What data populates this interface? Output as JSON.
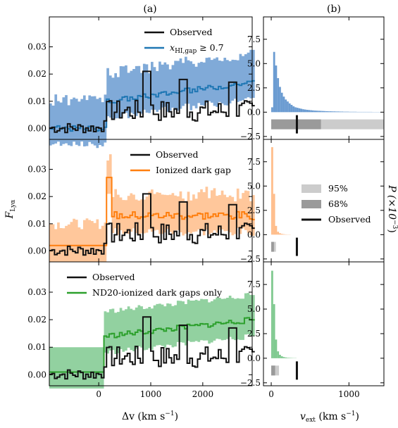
{
  "figure": {
    "label_a": "(a)",
    "label_b": "(b)",
    "ylabel_a": "F",
    "ylabel_a_sub": "Lyα",
    "xlabel_a": "Δv (km s",
    "xlabel_a_sup": "−1",
    "xlabel_a_close": ")",
    "xlabel_b": "v",
    "xlabel_b_sub": "ext",
    "xlabel_b_units": " (km s",
    "xlabel_b_sup": "−1",
    "xlabel_b_close": ")",
    "ylabel_b": "P (×10",
    "ylabel_b_sup": "−3",
    "ylabel_b_close": ")"
  },
  "colors": {
    "observed": "#111111",
    "blue": "#1f77b4",
    "blue_fill": "#6a9bd1",
    "orange": "#ff7f0e",
    "orange_fill": "#ffbd8a",
    "green": "#2ca02c",
    "green_fill": "#7fc98f",
    "band95": "#cccccc",
    "band68": "#9a9a9a"
  },
  "chart_data": [
    {
      "panel": "a-top",
      "type": "line",
      "xlim": [
        -950,
        2950
      ],
      "ylim": [
        -0.004,
        0.041
      ],
      "xticks": [
        0,
        1000,
        2000
      ],
      "yticks": [
        0.0,
        0.01,
        0.02,
        0.03
      ],
      "ytick_labels": [
        "0.00",
        "0.01",
        "0.02",
        "0.03"
      ],
      "legend": [
        "Observed",
        "x"
      ],
      "legend_model_sub": "HI,gap",
      "legend_model_tail": " ≥ 0.7",
      "legend_position": "top-right",
      "model": {
        "name": "x_HI,gap ≥ 0.7",
        "start": 150,
        "end_value": 0.017,
        "plateau": 0.01,
        "lower_offset": 0.0055,
        "upper_offset": 0.0085
      }
    },
    {
      "panel": "a-middle",
      "type": "line",
      "xlim": [
        -950,
        2950
      ],
      "ylim": [
        -0.004,
        0.041
      ],
      "xticks": [
        0,
        1000,
        2000
      ],
      "yticks": [
        0.0,
        0.01,
        0.02,
        0.03
      ],
      "ytick_labels": [
        "0.00",
        "0.01",
        "0.02",
        "0.03"
      ],
      "legend": [
        "Observed",
        "Ionized dark gap"
      ],
      "legend_position": "top-right",
      "model": {
        "name": "Ionized dark gap",
        "pre_level": 0.002,
        "peak": 0.027,
        "plateau": 0.013,
        "lower_offset": 0.006,
        "upper_offset": 0.006
      }
    },
    {
      "panel": "a-bottom",
      "type": "line",
      "xlim": [
        -950,
        2950
      ],
      "ylim": [
        -0.004,
        0.041
      ],
      "xticks": [
        0,
        1000,
        2000
      ],
      "xtick_labels": [
        "0",
        "1000",
        "2000"
      ],
      "yticks": [
        0.0,
        0.01,
        0.02,
        0.03
      ],
      "ytick_labels": [
        "0.00",
        "0.01",
        "0.02",
        "0.03"
      ],
      "legend": [
        "Observed",
        "ND20-ionized dark gaps only"
      ],
      "legend_position": "top-right",
      "model": {
        "name": "ND20-ionized dark gaps only",
        "pre_level": 0.001,
        "step_value": 0.014,
        "end_value": 0.02,
        "lower_offset": 0.006,
        "upper_offset": 0.009
      }
    },
    {
      "panel": "b",
      "type": "bar",
      "xlim": [
        -100,
        1450
      ],
      "xticks": [
        0,
        1000
      ],
      "xtick_labels": [
        "0",
        "1000"
      ],
      "ylim": [
        -2.8,
        9.8
      ],
      "yticks": [
        -2.5,
        0.0,
        2.5,
        5.0,
        7.5
      ],
      "ytick_labels": [
        "−2.5",
        "0.0",
        "2.5",
        "5.0",
        "7.5"
      ],
      "observed_vext": 330,
      "bands": [
        {
          "panel": "top",
          "p95": [
            0,
            1450
          ],
          "p68": [
            0,
            640
          ]
        },
        {
          "panel": "middle",
          "p95": [
            0,
            60
          ],
          "p68": [
            0,
            35
          ]
        },
        {
          "panel": "bottom",
          "p95": [
            0,
            100
          ],
          "p68": [
            0,
            50
          ]
        }
      ],
      "legend": [
        "95%",
        "68%",
        "Observed"
      ],
      "histograms": {
        "top": [
          0.5,
          6.2,
          4.8,
          3.5,
          2.6,
          2.0,
          1.6,
          1.3,
          1.1,
          0.9,
          0.75,
          0.6,
          0.5,
          0.45,
          0.4,
          0.35,
          0.3,
          0.27,
          0.24,
          0.22,
          0.2,
          0.18,
          0.16,
          0.15,
          0.14,
          0.13,
          0.12,
          0.11,
          0.1,
          0.09,
          0.09,
          0.08,
          0.08,
          0.07,
          0.07,
          0.06,
          0.06,
          0.05,
          0.05,
          0.05,
          0.04,
          0.04,
          0.04,
          0.04,
          0.03,
          0.03,
          0.03,
          0.03,
          0.03,
          0.03,
          0.03,
          0.03,
          0.02,
          0.02,
          0.02,
          0.02,
          0.02,
          0.02
        ],
        "middle": [
          9.0,
          4.2,
          0.9,
          0.3,
          0.15,
          0.08,
          0.05,
          0.03,
          0.02,
          0.02
        ],
        "bottom": [
          8.9,
          5.5,
          1.9,
          0.7,
          0.35,
          0.2,
          0.12,
          0.08,
          0.05,
          0.04,
          0.03,
          0.02,
          0.02
        ]
      },
      "bin_width": 25
    }
  ]
}
